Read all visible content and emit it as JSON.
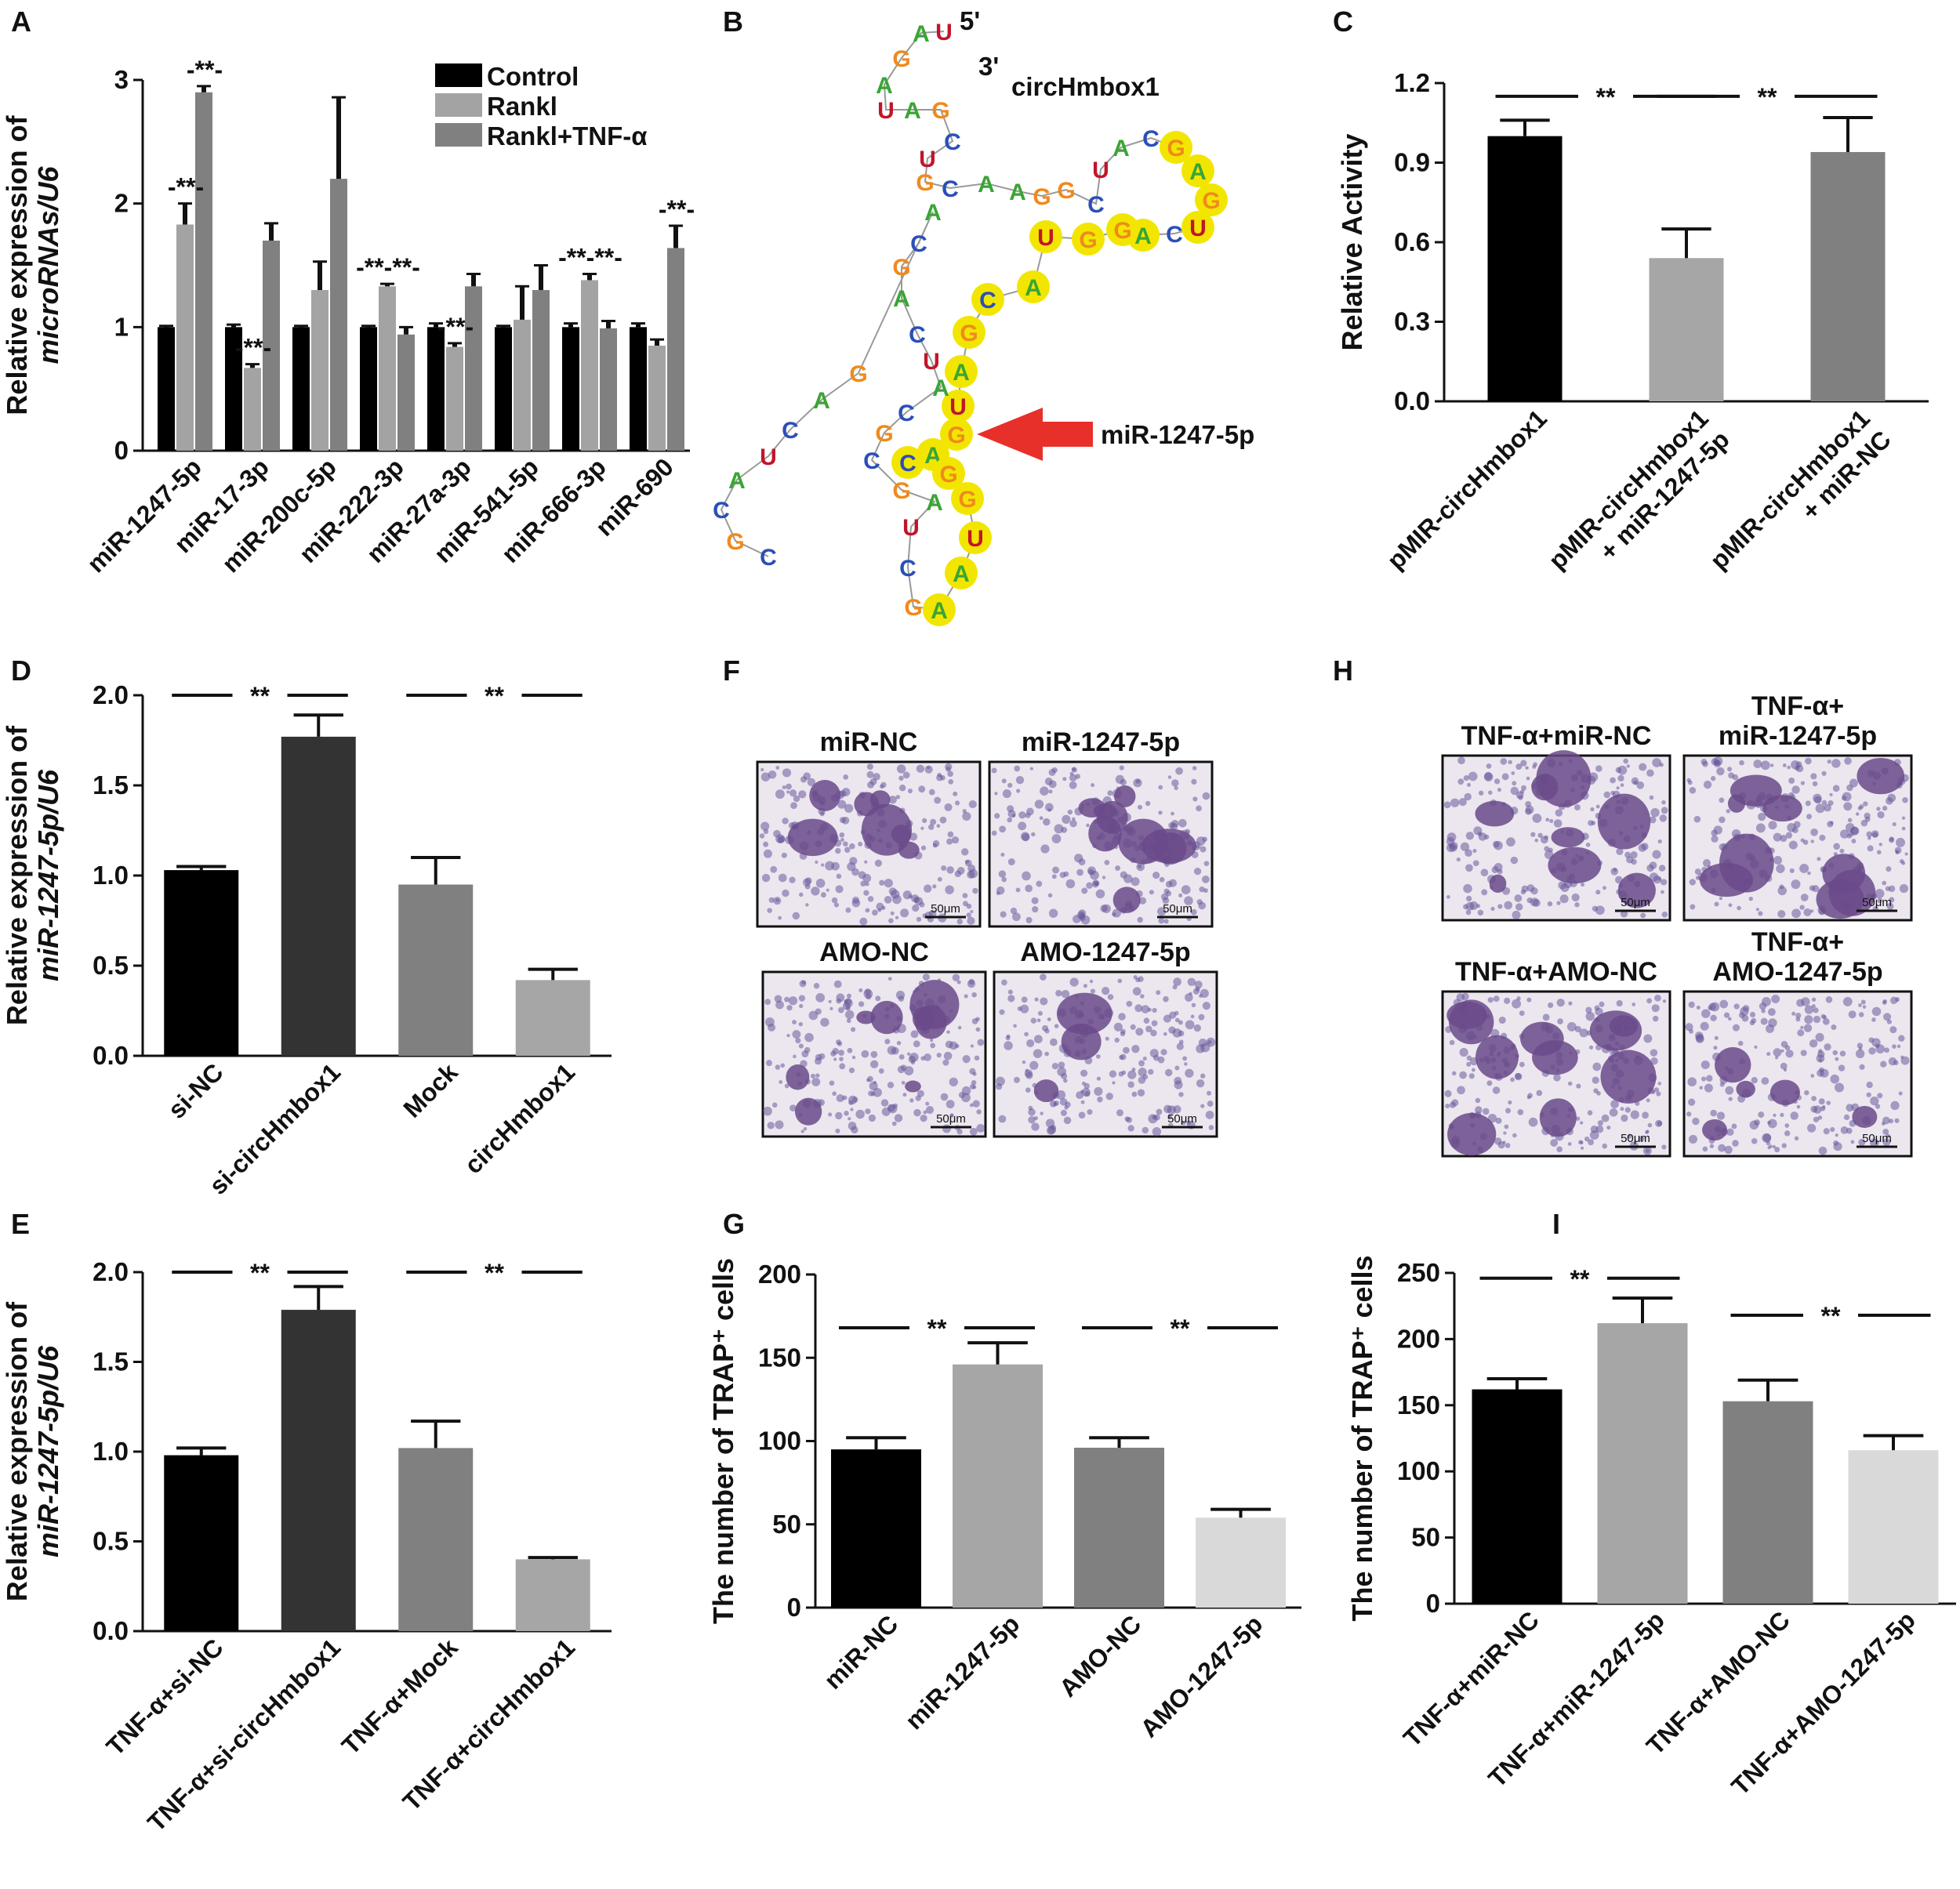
{
  "colors": {
    "black": "#000000",
    "dark_gray": "#333333",
    "mid_gray": "#808080",
    "light_gray": "#a3a3a3",
    "lighter_gray": "#a6a6a6",
    "pale_gray": "#d9d9d9",
    "red_arrow": "#e8302a",
    "yellow_highlight": "#f2e600",
    "stain_purple": "#6a4a8a"
  },
  "panels": {
    "A": {
      "label": "A"
    },
    "B": {
      "label": "B",
      "circ_name": "circHmbox1",
      "five_prime": "5'",
      "three_prime": "3'",
      "arrow_label": "miR-1247-5p"
    },
    "C": {
      "label": "C"
    },
    "D": {
      "label": "D"
    },
    "E": {
      "label": "E"
    },
    "F": {
      "label": "F"
    },
    "G": {
      "label": "G"
    },
    "H": {
      "label": "H"
    },
    "I": {
      "label": "I"
    }
  },
  "significance_mark": "**",
  "micrographs_F": [
    {
      "title": "miR-NC",
      "scale": "50μm"
    },
    {
      "title": "miR-1247-5p",
      "scale": "50μm"
    },
    {
      "title": "AMO-NC",
      "scale": "50μm"
    },
    {
      "title": "AMO-1247-5p",
      "scale": "50μm"
    }
  ],
  "micrographs_H": [
    {
      "title_line1": "TNF-α+miR-NC",
      "title_line2": "",
      "scale": "50μm"
    },
    {
      "title_line1": "TNF-α+",
      "title_line2": "miR-1247-5p",
      "scale": "50μm"
    },
    {
      "title_line1": "TNF-α+AMO-NC",
      "title_line2": "",
      "scale": "50μm"
    },
    {
      "title_line1": "TNF-α+",
      "title_line2": "AMO-1247-5p",
      "scale": "50μm"
    }
  ],
  "chart_data": [
    {
      "panel": "A",
      "type": "bar",
      "ylabel_line1": "Relative expression of",
      "ylabel_line2": "microRNAs/U6",
      "ylim": [
        0,
        3
      ],
      "yticks": [
        "0",
        "1",
        "2",
        "3"
      ],
      "categories": [
        "miR-1247-5p",
        "miR-17-3p",
        "miR-200c-5p",
        "miR-222-3p",
        "miR-27a-3p",
        "miR-541-5p",
        "miR-666-3p",
        "miR-690"
      ],
      "legend_position": "top-right",
      "series": [
        {
          "name": "Control",
          "color": "#000000",
          "values": [
            1.0,
            1.0,
            1.0,
            1.0,
            1.0,
            1.0,
            1.0,
            1.0
          ],
          "errors": [
            0.01,
            0.02,
            0.01,
            0.01,
            0.03,
            0.01,
            0.03,
            0.03
          ]
        },
        {
          "name": "Rankl",
          "color": "#a3a3a3",
          "values": [
            1.83,
            0.67,
            1.3,
            1.33,
            0.84,
            1.06,
            1.38,
            0.85
          ],
          "errors": [
            0.17,
            0.03,
            0.23,
            0.02,
            0.03,
            0.27,
            0.05,
            0.05
          ]
        },
        {
          "name": "Rankl+TNF-α",
          "color": "#808080",
          "values": [
            2.9,
            1.7,
            2.2,
            0.94,
            1.33,
            1.3,
            0.99,
            1.64
          ],
          "errors": [
            0.05,
            0.14,
            0.66,
            0.06,
            0.1,
            0.2,
            0.06,
            0.18
          ]
        }
      ],
      "annotations": [
        {
          "cat": 0,
          "series": 1,
          "text": "-**-"
        },
        {
          "cat": 0,
          "series": 2,
          "text": "-**-"
        },
        {
          "cat": 1,
          "series": 1,
          "text": "-**-"
        },
        {
          "cat": 3,
          "series": 1,
          "text": "-**-**-"
        },
        {
          "cat": 4,
          "series": 1,
          "text": "-**-"
        },
        {
          "cat": 6,
          "series": 1,
          "text": "-**-**-"
        },
        {
          "cat": 7,
          "series": 2,
          "text": "-**-"
        }
      ]
    },
    {
      "panel": "C",
      "type": "bar",
      "ylabel_line1": "Relative Activity",
      "ylabel_line2": "",
      "ylim": [
        0,
        1.2
      ],
      "yticks": [
        "0.0",
        "0.3",
        "0.6",
        "0.9",
        "1.2"
      ],
      "categories": [
        "pMIR-circHmbox1",
        "pMIR-circHmbox1",
        "pMIR-circHmbox1"
      ],
      "categories_line2": [
        "",
        "+ miR-1247-5p",
        "+ miR-NC"
      ],
      "values": [
        1.0,
        0.54,
        0.94
      ],
      "errors": [
        0.06,
        0.11,
        0.13
      ],
      "colors": [
        "#000000",
        "#a6a6a6",
        "#808080"
      ],
      "brackets": [
        {
          "from": 0,
          "to": 1,
          "y": 1.15
        },
        {
          "from": 1,
          "to": 2,
          "y": 1.15
        }
      ]
    },
    {
      "panel": "D",
      "type": "bar",
      "ylabel_line1": "Relative expression of",
      "ylabel_line2": "miR-1247-5p/U6",
      "ylim": [
        0,
        2.0
      ],
      "yticks": [
        "0.0",
        "0.5",
        "1.0",
        "1.5",
        "2.0"
      ],
      "categories": [
        "si-NC",
        "si-circHmbox1",
        "Mock",
        "circHmbox1"
      ],
      "values": [
        1.03,
        1.77,
        0.95,
        0.42
      ],
      "errors": [
        0.02,
        0.12,
        0.15,
        0.06
      ],
      "colors": [
        "#000000",
        "#333333",
        "#808080",
        "#a6a6a6"
      ],
      "brackets": [
        {
          "from": 0,
          "to": 1,
          "y": 2.0
        },
        {
          "from": 2,
          "to": 3,
          "y": 2.0
        }
      ]
    },
    {
      "panel": "E",
      "type": "bar",
      "ylabel_line1": "Relative expression of",
      "ylabel_line2": "miR-1247-5p/U6",
      "ylim": [
        0,
        2.0
      ],
      "yticks": [
        "0.0",
        "0.5",
        "1.0",
        "1.5",
        "2.0"
      ],
      "categories": [
        "TNF-α+si-NC",
        "TNF-α+si-circHmbox1",
        "TNF-α+Mock",
        "TNF-α+circHmbox1"
      ],
      "values": [
        0.98,
        1.79,
        1.02,
        0.4
      ],
      "errors": [
        0.04,
        0.13,
        0.15,
        0.01
      ],
      "colors": [
        "#000000",
        "#333333",
        "#808080",
        "#a6a6a6"
      ],
      "brackets": [
        {
          "from": 0,
          "to": 1,
          "y": 2.0
        },
        {
          "from": 2,
          "to": 3,
          "y": 2.0
        }
      ]
    },
    {
      "panel": "G",
      "type": "bar",
      "ylabel_line1": "The number of TRAP⁺ cells",
      "ylabel_line2": "",
      "ylim": [
        0,
        200
      ],
      "yticks": [
        "0",
        "50",
        "100",
        "150",
        "200"
      ],
      "categories": [
        "miR-NC",
        "miR-1247-5p",
        "AMO-NC",
        "AMO-1247-5p"
      ],
      "values": [
        95,
        146,
        96,
        54
      ],
      "errors": [
        7,
        13,
        6,
        5
      ],
      "colors": [
        "#000000",
        "#a6a6a6",
        "#808080",
        "#d9d9d9"
      ],
      "brackets": [
        {
          "from": 0,
          "to": 1,
          "y": 168
        },
        {
          "from": 2,
          "to": 3,
          "y": 168
        }
      ]
    },
    {
      "panel": "I",
      "type": "bar",
      "ylabel_line1": "The number of TRAP⁺ cells",
      "ylabel_line2": "",
      "ylim": [
        0,
        250
      ],
      "yticks": [
        "0",
        "50",
        "100",
        "150",
        "200",
        "250"
      ],
      "categories": [
        "TNF-α+miR-NC",
        "TNF-α+miR-1247-5p",
        "TNF-α+AMO-NC",
        "TNF-α+AMO-1247-5p"
      ],
      "values": [
        162,
        212,
        153,
        116
      ],
      "errors": [
        8,
        19,
        16,
        11
      ],
      "colors": [
        "#000000",
        "#a6a6a6",
        "#808080",
        "#d9d9d9"
      ],
      "brackets": [
        {
          "from": 0,
          "to": 1,
          "y": 246
        },
        {
          "from": 2,
          "to": 3,
          "y": 218
        }
      ]
    }
  ],
  "rna_structure": {
    "nucleotides": [
      {
        "b": "U",
        "hl": false
      },
      {
        "b": "A",
        "hl": false
      },
      {
        "b": "G",
        "hl": false
      },
      {
        "b": "A",
        "hl": false
      },
      {
        "b": "U",
        "hl": false
      },
      {
        "b": "A",
        "hl": false
      },
      {
        "b": "G",
        "hl": false
      },
      {
        "b": "C",
        "hl": false
      },
      {
        "b": "U",
        "hl": false
      },
      {
        "b": "G",
        "hl": false
      },
      {
        "b": "C",
        "hl": false
      },
      {
        "b": "A",
        "hl": false
      },
      {
        "b": "A",
        "hl": false
      },
      {
        "b": "G",
        "hl": false
      },
      {
        "b": "G",
        "hl": false
      },
      {
        "b": "C",
        "hl": false
      },
      {
        "b": "U",
        "hl": false
      },
      {
        "b": "A",
        "hl": false
      },
      {
        "b": "C",
        "hl": false
      },
      {
        "b": "G",
        "hl": true
      },
      {
        "b": "A",
        "hl": true
      },
      {
        "b": "G",
        "hl": true
      },
      {
        "b": "U",
        "hl": true
      },
      {
        "b": "C",
        "hl": false
      },
      {
        "b": "A",
        "hl": true
      },
      {
        "b": "G",
        "hl": true
      },
      {
        "b": "G",
        "hl": true
      },
      {
        "b": "U",
        "hl": true
      },
      {
        "b": "A",
        "hl": true
      },
      {
        "b": "C",
        "hl": true
      },
      {
        "b": "G",
        "hl": true
      },
      {
        "b": "A",
        "hl": true
      },
      {
        "b": "U",
        "hl": true
      },
      {
        "b": "G",
        "hl": true
      },
      {
        "b": "A",
        "hl": true
      },
      {
        "b": "C",
        "hl": true
      },
      {
        "b": "G",
        "hl": true
      },
      {
        "b": "G",
        "hl": true
      },
      {
        "b": "U",
        "hl": true
      },
      {
        "b": "A",
        "hl": true
      },
      {
        "b": "A",
        "hl": true
      },
      {
        "b": "G",
        "hl": false
      },
      {
        "b": "C",
        "hl": false
      },
      {
        "b": "U",
        "hl": false
      },
      {
        "b": "A",
        "hl": false
      },
      {
        "b": "G",
        "hl": false
      },
      {
        "b": "C",
        "hl": false
      },
      {
        "b": "G",
        "hl": false
      },
      {
        "b": "C",
        "hl": false
      },
      {
        "b": "A",
        "hl": false
      },
      {
        "b": "U",
        "hl": false
      },
      {
        "b": "C",
        "hl": false
      },
      {
        "b": "A",
        "hl": false
      },
      {
        "b": "G",
        "hl": false
      },
      {
        "b": "C",
        "hl": false
      },
      {
        "b": "A",
        "hl": false
      },
      {
        "b": "G",
        "hl": false
      },
      {
        "b": "A",
        "hl": false
      },
      {
        "b": "C",
        "hl": false
      },
      {
        "b": "U",
        "hl": false
      },
      {
        "b": "A",
        "hl": false
      },
      {
        "b": "C",
        "hl": false
      },
      {
        "b": "G",
        "hl": false
      },
      {
        "b": "C",
        "hl": false
      }
    ]
  }
}
